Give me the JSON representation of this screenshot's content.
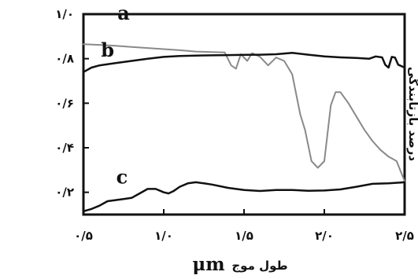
{
  "chart_data": {
    "type": "line",
    "xlabel": "طول موج",
    "xunit": "μm",
    "ylabel": "درصد بازتابندگی",
    "xlim": [
      0.5,
      2.5
    ],
    "ylim": [
      0.1,
      1.0
    ],
    "x_ticks": [
      {
        "value": 0.5,
        "label": "۰/۵"
      },
      {
        "value": 1.0,
        "label": "۱/۰"
      },
      {
        "value": 1.5,
        "label": "۱/۵"
      },
      {
        "value": 2.0,
        "label": "۲/۰"
      },
      {
        "value": 2.5,
        "label": "۲/۵"
      }
    ],
    "y_ticks": [
      {
        "value": 1.0,
        "label": "۱/۰"
      },
      {
        "value": 0.8,
        "label": "۰/۸"
      },
      {
        "value": 0.6,
        "label": "۰/۶"
      },
      {
        "value": 0.4,
        "label": "۰/۴"
      },
      {
        "value": 0.2,
        "label": "۰/۲"
      }
    ],
    "series": [
      {
        "name": "a",
        "color": "#8a8a8a",
        "label_at": [
          0.75,
          0.975
        ],
        "x": [
          0.5,
          0.6,
          0.7,
          0.8,
          0.9,
          1.0,
          1.1,
          1.2,
          1.3,
          1.38,
          1.42,
          1.45,
          1.48,
          1.52,
          1.55,
          1.6,
          1.65,
          1.7,
          1.75,
          1.8,
          1.85,
          1.88,
          1.92,
          1.96,
          2.0,
          2.04,
          2.07,
          2.1,
          2.15,
          2.2,
          2.25,
          2.3,
          2.35,
          2.4,
          2.45,
          2.5
        ],
        "y": [
          0.865,
          0.862,
          0.858,
          0.853,
          0.848,
          0.843,
          0.838,
          0.832,
          0.83,
          0.828,
          0.77,
          0.755,
          0.82,
          0.79,
          0.825,
          0.808,
          0.77,
          0.805,
          0.79,
          0.73,
          0.55,
          0.48,
          0.34,
          0.31,
          0.34,
          0.59,
          0.65,
          0.65,
          0.6,
          0.54,
          0.48,
          0.43,
          0.39,
          0.36,
          0.34,
          0.25
        ]
      },
      {
        "name": "b",
        "color": "#111111",
        "label_at": [
          0.65,
          0.81
        ],
        "x": [
          0.5,
          0.55,
          0.6,
          0.7,
          0.8,
          0.9,
          1.0,
          1.1,
          1.2,
          1.3,
          1.4,
          1.5,
          1.6,
          1.7,
          1.8,
          1.9,
          2.0,
          2.1,
          2.2,
          2.28,
          2.32,
          2.36,
          2.38,
          2.4,
          2.42,
          2.44,
          2.46,
          2.5
        ],
        "y": [
          0.74,
          0.76,
          0.77,
          0.78,
          0.79,
          0.8,
          0.808,
          0.812,
          0.814,
          0.815,
          0.816,
          0.817,
          0.818,
          0.82,
          0.826,
          0.818,
          0.81,
          0.806,
          0.803,
          0.8,
          0.81,
          0.806,
          0.772,
          0.76,
          0.808,
          0.805,
          0.773,
          0.76
        ]
      },
      {
        "name": "c",
        "color": "#111111",
        "label_at": [
          0.74,
          0.24
        ],
        "x": [
          0.5,
          0.55,
          0.6,
          0.65,
          0.7,
          0.75,
          0.8,
          0.85,
          0.9,
          0.95,
          1.0,
          1.03,
          1.06,
          1.1,
          1.15,
          1.2,
          1.25,
          1.3,
          1.4,
          1.5,
          1.6,
          1.7,
          1.8,
          1.9,
          2.0,
          2.1,
          2.2,
          2.3,
          2.4,
          2.5
        ],
        "y": [
          0.115,
          0.125,
          0.14,
          0.16,
          0.165,
          0.17,
          0.175,
          0.195,
          0.215,
          0.215,
          0.2,
          0.195,
          0.205,
          0.225,
          0.24,
          0.245,
          0.24,
          0.235,
          0.22,
          0.21,
          0.206,
          0.21,
          0.21,
          0.207,
          0.208,
          0.213,
          0.225,
          0.238,
          0.24,
          0.245
        ]
      }
    ]
  }
}
